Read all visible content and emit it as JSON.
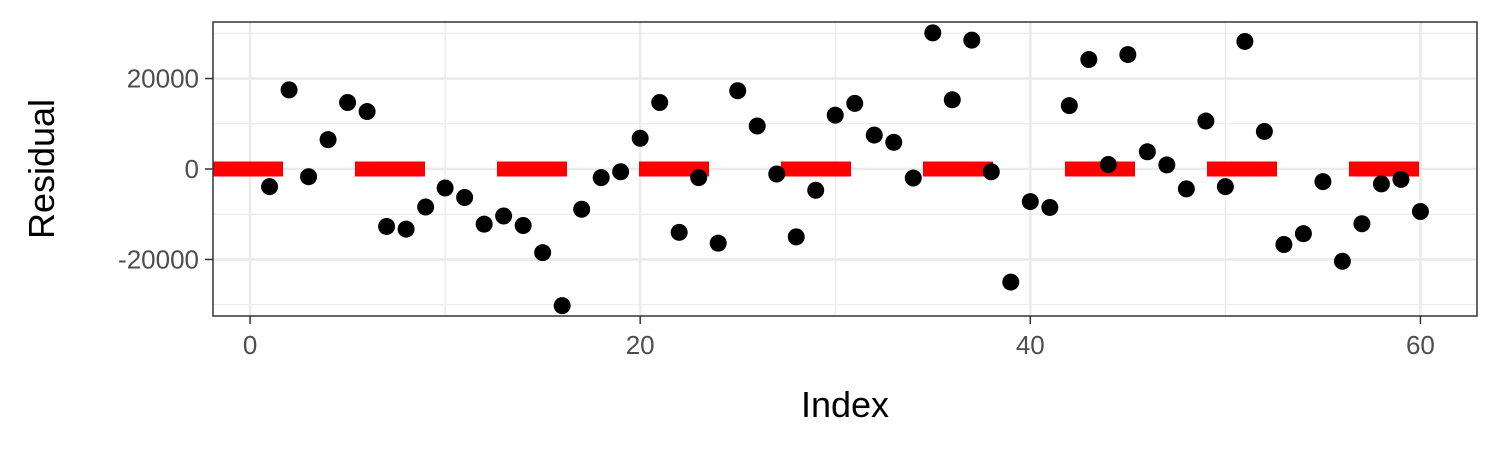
{
  "chart_data": {
    "type": "scatter",
    "title": "",
    "xlabel": "Index",
    "ylabel": "Residual",
    "xlim": [
      -1.9,
      62.9
    ],
    "ylim": [
      -32500,
      32500
    ],
    "grid": true,
    "x_ticks": [
      0,
      20,
      40,
      60
    ],
    "x_tick_labels": [
      "0",
      "20",
      "40",
      "60"
    ],
    "y_ticks": [
      -20000,
      0,
      20000
    ],
    "y_tick_labels": [
      "-20000",
      "0",
      "20000"
    ],
    "reference_line": {
      "y": 0,
      "style": "dashed",
      "color": "#ff0000"
    },
    "points_color": "#000000",
    "x": [
      1,
      2,
      3,
      4,
      5,
      6,
      7,
      8,
      9,
      10,
      11,
      12,
      13,
      14,
      15,
      16,
      17,
      18,
      19,
      20,
      21,
      22,
      23,
      24,
      25,
      26,
      27,
      28,
      29,
      30,
      31,
      32,
      33,
      34,
      35,
      36,
      37,
      38,
      39,
      40,
      41,
      42,
      43,
      44,
      45,
      46,
      47,
      48,
      49,
      50,
      51,
      52,
      53,
      54,
      55,
      56,
      57,
      58,
      59,
      60
    ],
    "y": [
      -3900,
      17500,
      -1700,
      6500,
      14700,
      12700,
      -12700,
      -13300,
      -8400,
      -4200,
      -6300,
      -12200,
      -10400,
      -12500,
      -18500,
      -30200,
      -8900,
      -1900,
      -600,
      6800,
      14700,
      -14000,
      -1900,
      -16400,
      17300,
      9500,
      -1100,
      -15000,
      -4700,
      11900,
      14500,
      7500,
      5900,
      -2000,
      30100,
      15300,
      28500,
      -600,
      -25000,
      -7200,
      -8500,
      14000,
      24200,
      1000,
      25300,
      3800,
      900,
      -4400,
      10600,
      -3900,
      28200,
      8300,
      -16700,
      -14300,
      -2800,
      -20400,
      -12100,
      -3300,
      -2300,
      -9400
    ]
  }
}
